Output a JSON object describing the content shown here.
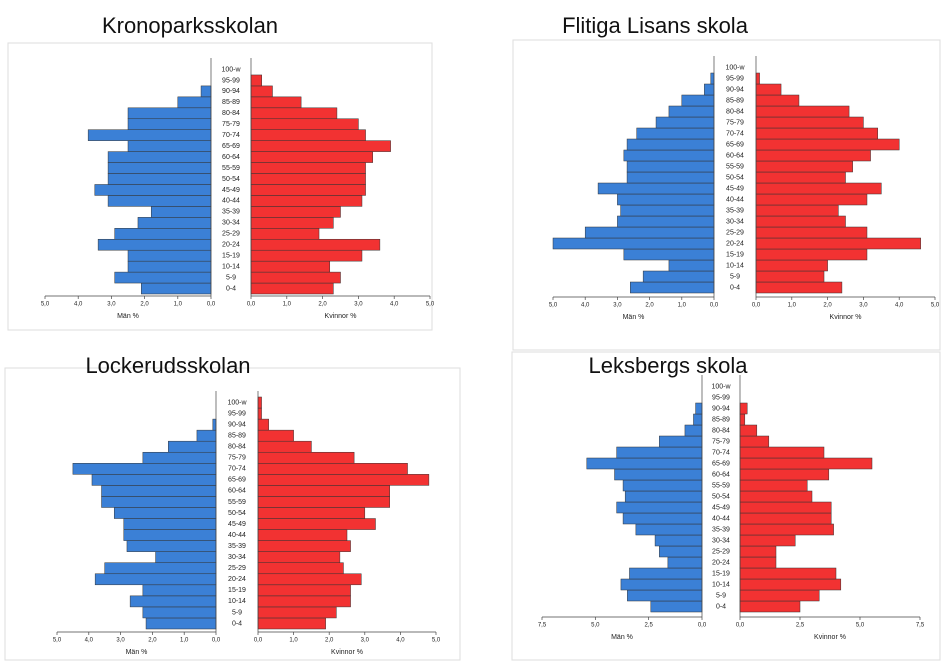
{
  "chart_data": [
    {
      "type": "pyramid",
      "title": "Kronoparksskolan",
      "categories": [
        "0-4",
        "5-9",
        "10-14",
        "15-19",
        "20-24",
        "25-29",
        "30-34",
        "35-39",
        "40-44",
        "45-49",
        "50-54",
        "55-59",
        "60-64",
        "65-69",
        "70-74",
        "75-79",
        "80-84",
        "85-89",
        "90-94",
        "95-99",
        "100-w"
      ],
      "series": [
        {
          "name": "Män %",
          "color": "#3b80d6",
          "values": [
            2.1,
            2.9,
            2.5,
            2.5,
            3.4,
            2.9,
            2.2,
            1.8,
            3.1,
            3.5,
            3.1,
            3.1,
            3.1,
            2.5,
            3.7,
            2.5,
            2.5,
            1.0,
            0.3,
            0,
            0
          ]
        },
        {
          "name": "Kvinnor %",
          "color": "#f23232",
          "values": [
            2.3,
            2.5,
            2.2,
            3.1,
            3.6,
            1.9,
            2.3,
            2.5,
            3.1,
            3.2,
            3.2,
            3.2,
            3.4,
            3.9,
            3.2,
            3.0,
            2.4,
            1.4,
            0.6,
            0.3,
            0
          ]
        }
      ],
      "xlim": [
        0,
        5
      ],
      "xticks": [
        {
          "value": 0,
          "label": "0,0"
        },
        {
          "value": 1,
          "label": "1,0"
        },
        {
          "value": 2,
          "label": "2,0"
        },
        {
          "value": 3,
          "label": "3,0"
        },
        {
          "value": 4,
          "label": "4,0"
        },
        {
          "value": 5,
          "label": "5,0"
        }
      ]
    },
    {
      "type": "pyramid",
      "title": "Flitiga Lisans skola",
      "categories": [
        "0-4",
        "5-9",
        "10-14",
        "15-19",
        "20-24",
        "25-29",
        "30-34",
        "35-39",
        "40-44",
        "45-49",
        "50-54",
        "55-59",
        "60-64",
        "65-69",
        "70-74",
        "75-79",
        "80-84",
        "85-89",
        "90-94",
        "95-99",
        "100-w"
      ],
      "series": [
        {
          "name": "Män %",
          "color": "#3b80d6",
          "values": [
            2.6,
            2.2,
            1.4,
            2.8,
            5.0,
            4.0,
            3.0,
            2.9,
            3.0,
            3.6,
            2.7,
            2.7,
            2.8,
            2.7,
            2.4,
            1.8,
            1.4,
            1.0,
            0.3,
            0.1,
            0
          ]
        },
        {
          "name": "Kvinnor %",
          "color": "#f23232",
          "values": [
            2.4,
            1.9,
            2.0,
            3.1,
            4.6,
            3.1,
            2.5,
            2.3,
            3.1,
            3.5,
            2.5,
            2.7,
            3.2,
            4.0,
            3.4,
            3.0,
            2.6,
            1.2,
            0.7,
            0.1,
            0
          ]
        }
      ],
      "xlim": [
        0,
        5
      ],
      "xticks": [
        {
          "value": 0,
          "label": "0,0"
        },
        {
          "value": 1,
          "label": "1,0"
        },
        {
          "value": 2,
          "label": "2,0"
        },
        {
          "value": 3,
          "label": "3,0"
        },
        {
          "value": 4,
          "label": "4,0"
        },
        {
          "value": 5,
          "label": "5,0"
        }
      ]
    },
    {
      "type": "pyramid",
      "title": "Lockerudsskolan",
      "categories": [
        "0-4",
        "5-9",
        "10-14",
        "15-19",
        "20-24",
        "25-29",
        "30-34",
        "35-39",
        "40-44",
        "45-49",
        "50-54",
        "55-59",
        "60-64",
        "65-69",
        "70-74",
        "75-79",
        "80-84",
        "85-89",
        "90-94",
        "95-99",
        "100-w"
      ],
      "series": [
        {
          "name": "Män %",
          "color": "#3b80d6",
          "values": [
            2.2,
            2.3,
            2.7,
            2.3,
            3.8,
            3.5,
            1.9,
            2.8,
            2.9,
            2.9,
            3.2,
            3.6,
            3.6,
            3.9,
            4.5,
            2.3,
            1.5,
            0.6,
            0.1,
            0,
            0
          ]
        },
        {
          "name": "Kvinnor %",
          "color": "#f23232",
          "values": [
            1.9,
            2.2,
            2.6,
            2.6,
            2.9,
            2.4,
            2.3,
            2.6,
            2.5,
            3.3,
            3.0,
            3.7,
            3.7,
            4.8,
            4.2,
            2.7,
            1.5,
            1.0,
            0.3,
            0.1,
            0.1
          ]
        }
      ],
      "xlim": [
        0,
        5
      ],
      "xticks": [
        {
          "value": 0,
          "label": "0,0"
        },
        {
          "value": 1,
          "label": "1,0"
        },
        {
          "value": 2,
          "label": "2,0"
        },
        {
          "value": 3,
          "label": "3,0"
        },
        {
          "value": 4,
          "label": "4,0"
        },
        {
          "value": 5,
          "label": "5,0"
        }
      ]
    },
    {
      "type": "pyramid",
      "title": "Leksbergs skola",
      "categories": [
        "0-4",
        "5-9",
        "10-14",
        "15-19",
        "20-24",
        "25-29",
        "30-34",
        "35-39",
        "40-44",
        "45-49",
        "50-54",
        "55-59",
        "60-64",
        "65-69",
        "70-74",
        "75-79",
        "80-84",
        "85-89",
        "90-94",
        "95-99",
        "100-w"
      ],
      "series": [
        {
          "name": "Män %",
          "color": "#3b80d6",
          "values": [
            2.4,
            3.5,
            3.8,
            3.4,
            1.6,
            2.0,
            2.2,
            3.1,
            3.7,
            4.0,
            3.6,
            3.7,
            4.1,
            5.4,
            4.0,
            2.0,
            0.8,
            0.4,
            0.3,
            0,
            0
          ]
        },
        {
          "name": "Kvinnor %",
          "color": "#f23232",
          "values": [
            2.5,
            3.3,
            4.2,
            4.0,
            1.5,
            1.5,
            2.3,
            3.9,
            3.8,
            3.8,
            3.0,
            2.8,
            3.7,
            5.5,
            3.5,
            1.2,
            0.7,
            0.2,
            0.3,
            0,
            0
          ]
        }
      ],
      "xlim": [
        0,
        7.5
      ],
      "xticks": [
        {
          "value": 0,
          "label": "0,0"
        },
        {
          "value": 2.5,
          "label": "2,5"
        },
        {
          "value": 5,
          "label": "5,0"
        },
        {
          "value": 7.5,
          "label": "7,5"
        }
      ]
    }
  ]
}
